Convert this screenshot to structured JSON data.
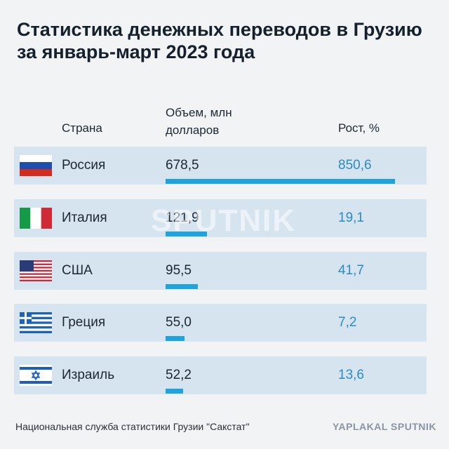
{
  "chart_data": {
    "type": "bar",
    "orientation": "horizontal",
    "title": "Статистика денежных переводов в Грузию за январь-март 2023 года",
    "category_header": "Страна",
    "categories": [
      "Россия",
      "Италия",
      "США",
      "Греция",
      "Израиль"
    ],
    "series": [
      {
        "name": "Объем, млн долларов",
        "color": "#1ea3dd",
        "values": [
          678.5,
          121.9,
          95.5,
          55.0,
          52.2
        ],
        "value_labels": [
          "678,5",
          "121,9",
          "95,5",
          "55,0",
          "52,2"
        ]
      }
    ],
    "growth": {
      "name": "Рост, %",
      "values": [
        850.6,
        19.1,
        41.7,
        7.2,
        13.6
      ],
      "value_labels": [
        "850,6",
        "19,1",
        "41,7",
        "7,2",
        "13,6"
      ]
    },
    "xlim": [
      0,
      680
    ],
    "watermark": "SPUTNIK",
    "source": "Национальная служба статистики Грузии \"Сакстат\"",
    "logo": "YAPLAKAL SPUTNIK"
  }
}
